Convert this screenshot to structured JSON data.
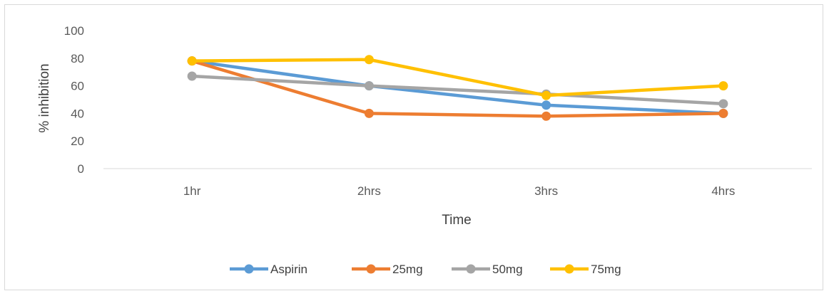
{
  "chart_data": {
    "type": "line",
    "title": "",
    "xlabel": "Time",
    "ylabel": "% inhibition",
    "categories": [
      "1hr",
      "2hrs",
      "3hrs",
      "4hrs"
    ],
    "ylim": [
      0,
      100
    ],
    "yticks": [
      0,
      20,
      40,
      60,
      80,
      100
    ],
    "grid": false,
    "legend_position": "bottom",
    "series": [
      {
        "name": "Aspirin",
        "color": "#5b9bd5",
        "values": [
          78,
          60,
          46,
          40
        ]
      },
      {
        "name": "25mg",
        "color": "#ed7d31",
        "values": [
          78,
          40,
          38,
          40
        ]
      },
      {
        "name": "50mg",
        "color": "#a5a5a5",
        "values": [
          67,
          60,
          54,
          47
        ]
      },
      {
        "name": "75mg",
        "color": "#ffc000",
        "values": [
          78,
          79,
          53,
          60
        ]
      }
    ]
  }
}
